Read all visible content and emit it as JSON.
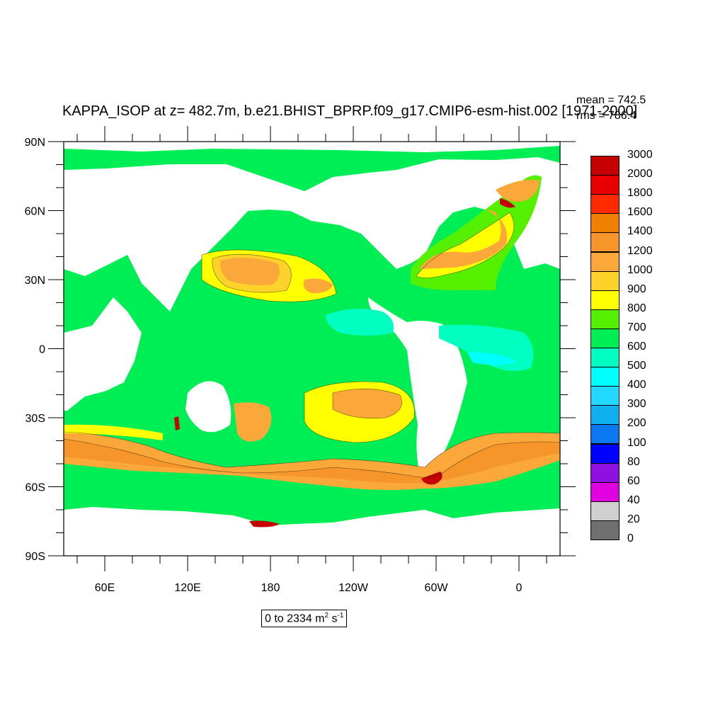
{
  "title": "KAPPA_ISOP at z= 482.7m, b.e21.BHIST_BPRP.f09_g17.CMIP6-esm-hist.002 [1971-2000]",
  "stats": {
    "mean": "mean = 742.5",
    "rms": "rms = 786.4"
  },
  "range_label": {
    "prefix": "0 to 2334 m",
    "sup1": "2",
    "mid": " s",
    "sup2": "-1"
  },
  "axes": {
    "y_ticks": [
      "90N",
      "60N",
      "30N",
      "0",
      "30S",
      "60S",
      "90S"
    ],
    "x_ticks": [
      "60E",
      "120E",
      "180",
      "120W",
      "60W",
      "0"
    ]
  },
  "colorbar": {
    "levels": [
      "3000",
      "2000",
      "1800",
      "1600",
      "1400",
      "1200",
      "1000",
      "900",
      "800",
      "700",
      "600",
      "500",
      "400",
      "300",
      "200",
      "100",
      "80",
      "60",
      "40",
      "20",
      "0"
    ],
    "colors": [
      "#c40000",
      "#e80000",
      "#ff2a00",
      "#f08000",
      "#f5952a",
      "#fba83a",
      "#fdd22a",
      "#ffff00",
      "#55f000",
      "#00ee55",
      "#00ffc0",
      "#00ffff",
      "#22d8ff",
      "#10b0f0",
      "#0a78f0",
      "#0000ff",
      "#9010e0",
      "#e000e0",
      "#d0d0d0",
      "#707070"
    ]
  },
  "map_palette": {
    "land": "#ffffff",
    "ocean_base": "#00ee55",
    "field_700": "#55f000",
    "field_800": "#ffff00",
    "field_900": "#fdd22a",
    "field_1000": "#fba83a",
    "field_1200": "#f5952a",
    "field_1600": "#ff2a00",
    "field_3000": "#c40000",
    "field_600": "#00ffc0",
    "field_500": "#00ffff"
  }
}
